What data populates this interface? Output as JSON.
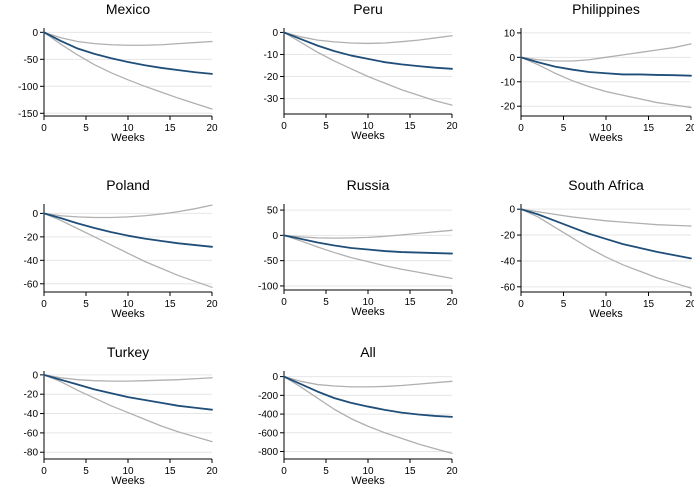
{
  "figure": {
    "colors": {
      "estimate": "#1f4e79",
      "band": "#b0b0b0",
      "grid": "#e6e6e6",
      "axis": "#000000"
    }
  },
  "chart_data": [
    {
      "type": "line",
      "title": "Mexico",
      "xlabel": "Weeks",
      "ylabel": "",
      "xlim": [
        0,
        20
      ],
      "ylim": [
        -155,
        8
      ],
      "xticks": [
        0,
        5,
        10,
        15,
        20
      ],
      "yticks": [
        0,
        -50,
        -100,
        -150
      ],
      "grid": true,
      "x": [
        0,
        2,
        4,
        6,
        8,
        10,
        12,
        14,
        16,
        18,
        20
      ],
      "series": [
        {
          "role": "estimate",
          "values": [
            0,
            -16,
            -30,
            -40,
            -48,
            -55,
            -61,
            -66,
            -70,
            -74,
            -77
          ]
        },
        {
          "role": "upper",
          "values": [
            0,
            -10,
            -17,
            -21,
            -23,
            -24,
            -24,
            -23,
            -21,
            -19,
            -17
          ]
        },
        {
          "role": "lower",
          "values": [
            0,
            -22,
            -42,
            -60,
            -75,
            -88,
            -100,
            -111,
            -122,
            -132,
            -142
          ]
        }
      ]
    },
    {
      "type": "line",
      "title": "Peru",
      "xlabel": "Weeks",
      "ylabel": "",
      "xlim": [
        0,
        20
      ],
      "ylim": [
        -37,
        2
      ],
      "xticks": [
        0,
        5,
        10,
        15,
        20
      ],
      "yticks": [
        0,
        -10,
        -20,
        -30
      ],
      "grid": true,
      "x": [
        0,
        2,
        4,
        6,
        8,
        10,
        12,
        14,
        16,
        18,
        20
      ],
      "series": [
        {
          "role": "estimate",
          "values": [
            0,
            -3,
            -6,
            -8.5,
            -10.5,
            -12,
            -13.5,
            -14.5,
            -15.3,
            -16,
            -16.5
          ]
        },
        {
          "role": "upper",
          "values": [
            0,
            -2,
            -3.5,
            -4.3,
            -4.8,
            -5,
            -4.8,
            -4.2,
            -3.5,
            -2.5,
            -1.5
          ]
        },
        {
          "role": "lower",
          "values": [
            0,
            -4.5,
            -9,
            -13,
            -16.5,
            -20,
            -23,
            -26,
            -28.5,
            -31,
            -33
          ]
        }
      ]
    },
    {
      "type": "line",
      "title": "Philippines",
      "xlabel": "Weeks",
      "ylabel": "",
      "xlim": [
        0,
        20
      ],
      "ylim": [
        -24,
        12
      ],
      "xticks": [
        0,
        5,
        10,
        15,
        20
      ],
      "yticks": [
        10,
        0,
        -10,
        -20
      ],
      "grid": true,
      "x": [
        0,
        2,
        4,
        6,
        8,
        10,
        12,
        14,
        16,
        18,
        20
      ],
      "series": [
        {
          "role": "estimate",
          "values": [
            0,
            -2,
            -3.8,
            -5,
            -6,
            -6.5,
            -7,
            -7,
            -7.2,
            -7.3,
            -7.5
          ]
        },
        {
          "role": "upper",
          "values": [
            0,
            -1,
            -1.5,
            -1.5,
            -1,
            0,
            1,
            2,
            3,
            4,
            5.5
          ]
        },
        {
          "role": "lower",
          "values": [
            0,
            -3,
            -6.5,
            -9.5,
            -12,
            -14,
            -15.5,
            -17,
            -18.5,
            -19.5,
            -20.5
          ]
        }
      ]
    },
    {
      "type": "line",
      "title": "Poland",
      "xlabel": "Weeks",
      "ylabel": "",
      "xlim": [
        0,
        20
      ],
      "ylim": [
        -67,
        8
      ],
      "xticks": [
        0,
        5,
        10,
        15,
        20
      ],
      "yticks": [
        0,
        -20,
        -40,
        -60
      ],
      "grid": true,
      "x": [
        0,
        2,
        4,
        6,
        8,
        10,
        12,
        14,
        16,
        18,
        20
      ],
      "series": [
        {
          "role": "estimate",
          "values": [
            0,
            -4,
            -8.5,
            -12.5,
            -16,
            -19,
            -21.5,
            -23.5,
            -25.5,
            -27,
            -28.5
          ]
        },
        {
          "role": "upper",
          "values": [
            0,
            -2,
            -3,
            -3.5,
            -3.5,
            -3,
            -2,
            -0.5,
            1.5,
            4,
            7
          ]
        },
        {
          "role": "lower",
          "values": [
            0,
            -6,
            -13,
            -20,
            -27,
            -34,
            -41,
            -47,
            -53,
            -58,
            -63
          ]
        }
      ]
    },
    {
      "type": "line",
      "title": "Russia",
      "xlabel": "Weeks",
      "ylabel": "",
      "xlim": [
        0,
        20
      ],
      "ylim": [
        -108,
        62
      ],
      "xticks": [
        0,
        5,
        10,
        15,
        20
      ],
      "yticks": [
        50,
        0,
        -50,
        -100
      ],
      "grid": true,
      "x": [
        0,
        2,
        4,
        6,
        8,
        10,
        12,
        14,
        16,
        18,
        20
      ],
      "series": [
        {
          "role": "estimate",
          "values": [
            0,
            -7,
            -14,
            -20,
            -25,
            -28,
            -31,
            -33,
            -34,
            -35,
            -36
          ]
        },
        {
          "role": "upper",
          "values": [
            0,
            -3,
            -5,
            -5.5,
            -5,
            -4,
            -2,
            1,
            4,
            7,
            10
          ]
        },
        {
          "role": "lower",
          "values": [
            0,
            -11,
            -23,
            -34,
            -44,
            -52,
            -60,
            -67,
            -73,
            -79,
            -85
          ]
        }
      ]
    },
    {
      "type": "line",
      "title": "South Africa",
      "xlabel": "Weeks",
      "ylabel": "",
      "xlim": [
        0,
        20
      ],
      "ylim": [
        -64,
        4
      ],
      "xticks": [
        0,
        5,
        10,
        15,
        20
      ],
      "yticks": [
        0,
        -20,
        -40,
        -60
      ],
      "grid": true,
      "x": [
        0,
        2,
        4,
        6,
        8,
        10,
        12,
        14,
        16,
        18,
        20
      ],
      "series": [
        {
          "role": "estimate",
          "values": [
            0,
            -4,
            -9,
            -14,
            -19,
            -23,
            -27,
            -30,
            -33,
            -35.5,
            -38
          ]
        },
        {
          "role": "upper",
          "values": [
            0,
            -2,
            -4,
            -6,
            -7.5,
            -9,
            -10,
            -11,
            -12,
            -12.5,
            -13
          ]
        },
        {
          "role": "lower",
          "values": [
            0,
            -6,
            -14,
            -22,
            -30,
            -37,
            -43,
            -48,
            -53,
            -57,
            -61
          ]
        }
      ]
    },
    {
      "type": "line",
      "title": "Turkey",
      "xlabel": "Weeks",
      "ylabel": "",
      "xlim": [
        0,
        20
      ],
      "ylim": [
        -87,
        4
      ],
      "xticks": [
        0,
        5,
        10,
        15,
        20
      ],
      "yticks": [
        0,
        -20,
        -40,
        -60,
        -80
      ],
      "grid": true,
      "x": [
        0,
        2,
        4,
        6,
        8,
        10,
        12,
        14,
        16,
        18,
        20
      ],
      "series": [
        {
          "role": "estimate",
          "values": [
            0,
            -5,
            -10,
            -15,
            -19,
            -23,
            -26,
            -29,
            -32,
            -34,
            -36
          ]
        },
        {
          "role": "upper",
          "values": [
            0,
            -3,
            -5,
            -6,
            -6.5,
            -6.5,
            -6,
            -5.5,
            -5,
            -4,
            -3
          ]
        },
        {
          "role": "lower",
          "values": [
            0,
            -7,
            -16,
            -24,
            -32,
            -39,
            -46,
            -53,
            -59,
            -64,
            -69
          ]
        }
      ]
    },
    {
      "type": "line",
      "title": "All",
      "xlabel": "Weeks",
      "ylabel": "",
      "xlim": [
        0,
        20
      ],
      "ylim": [
        -880,
        60
      ],
      "xticks": [
        0,
        5,
        10,
        15,
        20
      ],
      "yticks": [
        0,
        -200,
        -400,
        -600,
        -800
      ],
      "grid": true,
      "x": [
        0,
        2,
        4,
        6,
        8,
        10,
        12,
        14,
        16,
        18,
        20
      ],
      "series": [
        {
          "role": "estimate",
          "values": [
            0,
            -80,
            -160,
            -230,
            -280,
            -320,
            -355,
            -385,
            -405,
            -420,
            -430
          ]
        },
        {
          "role": "upper",
          "values": [
            0,
            -50,
            -85,
            -100,
            -110,
            -110,
            -105,
            -95,
            -80,
            -65,
            -50
          ]
        },
        {
          "role": "lower",
          "values": [
            0,
            -110,
            -230,
            -350,
            -450,
            -530,
            -600,
            -660,
            -720,
            -770,
            -820
          ]
        }
      ]
    }
  ]
}
